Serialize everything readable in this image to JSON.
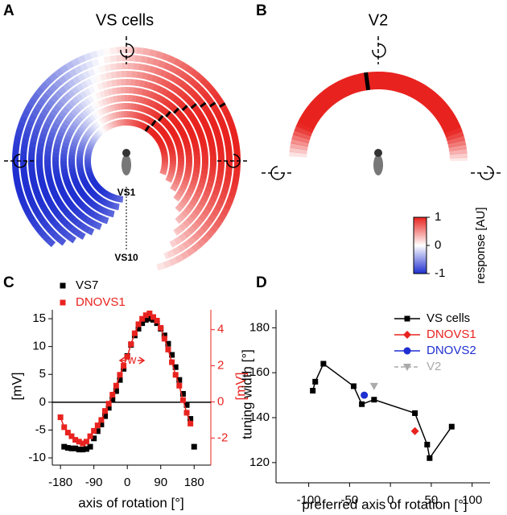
{
  "labels": {
    "a": "A",
    "b": "B",
    "c": "C",
    "d": "D"
  },
  "panel_a": {
    "title": "VS cells",
    "inner_label": "VS1",
    "outer_label": "VS10"
  },
  "panel_b": {
    "title": "V2"
  },
  "colorbar": {
    "label": "response [AU]",
    "ticks": [
      1,
      0,
      -1
    ]
  },
  "chart_data": [
    {
      "type": "scatter",
      "x": [
        -180,
        -170,
        -160,
        -150,
        -140,
        -130,
        -120,
        -110,
        -100,
        -90,
        -80,
        -70,
        -60,
        -50,
        -40,
        -30,
        -20,
        -10,
        0,
        10,
        20,
        30,
        40,
        50,
        60,
        70,
        80,
        90,
        100,
        110,
        120,
        130,
        140,
        150,
        160,
        170,
        180
      ],
      "series": [
        {
          "name": "VS7",
          "color": "#000000",
          "marker": "square",
          "line": "none",
          "values": [
            null,
            -8,
            -8.2,
            -8.3,
            -8.3,
            -8.5,
            -8.5,
            -8.4,
            -8,
            -6.5,
            -5.2,
            -4,
            -2.5,
            -1,
            0.5,
            2,
            4,
            6,
            8.3,
            10.3,
            12,
            13.2,
            14.2,
            14.8,
            15,
            14.8,
            14.2,
            13.2,
            12,
            10.5,
            8.5,
            6.3,
            4,
            1.5,
            -0.5,
            -3,
            -8
          ]
        },
        {
          "name": "DNOVS1",
          "color": "#e8231f",
          "marker": "square",
          "line": "solid",
          "axis": "y2",
          "values": [
            -0.85,
            -1.4,
            -1.7,
            -1.9,
            -2.1,
            -2.2,
            -2.3,
            -2.2,
            -1.9,
            -1.6,
            -1.3,
            -1,
            -0.5,
            -0.1,
            0.4,
            0.9,
            1.5,
            2,
            2.5,
            3.2,
            3.8,
            4.3,
            4.6,
            4.8,
            4.9,
            4.7,
            4.5,
            4.1,
            3.5,
            2.9,
            2.2,
            1.5,
            0.9,
            0.1,
            -0.6,
            -1.2,
            null
          ]
        }
      ],
      "xlabel": "axis of rotation [°]",
      "ylabel": "[mV]",
      "y2label": "[mV]",
      "annotation": "w",
      "xlim": [
        -202,
        225
      ],
      "xticks": [
        -180,
        -90,
        0,
        90,
        180
      ],
      "ylim": [
        -11.3,
        16.6
      ],
      "yticks": [
        -10,
        -5,
        0,
        5,
        10,
        15
      ],
      "y2lim": [
        -3.5,
        5.1
      ],
      "y2ticks": [
        -2,
        0,
        2,
        4
      ],
      "legend": "top-left"
    },
    {
      "type": "scatter",
      "series": [
        {
          "name": "VS cells",
          "color": "#000000",
          "marker": "square",
          "line": "solid",
          "x": [
            -95,
            -92,
            -82,
            -45,
            -35,
            -20,
            30,
            45,
            48,
            75
          ],
          "values": [
            152,
            156,
            164,
            154,
            146,
            148,
            142,
            128,
            122,
            136
          ]
        },
        {
          "name": "DNOVS1",
          "color": "#e8231f",
          "marker": "diamond",
          "line": "solid",
          "x": [
            30
          ],
          "values": [
            134
          ]
        },
        {
          "name": "DNOVS2",
          "color": "#1f2fd0",
          "marker": "circle",
          "line": "solid",
          "x": [
            -32
          ],
          "values": [
            150
          ]
        },
        {
          "name": "V2",
          "color": "#aaaaaa",
          "marker": "triangle",
          "line": "dashed",
          "x": [
            -20
          ],
          "values": [
            154
          ]
        }
      ],
      "xlabel": "preferred axis of rotation [°]",
      "ylabel": "tuning width [°]",
      "xlim": [
        -140,
        122
      ],
      "xticks": [
        -100,
        -50,
        0,
        50,
        100
      ],
      "ylim": [
        111,
        188
      ],
      "yticks": [
        120,
        140,
        160,
        180
      ],
      "legend": "top-right"
    }
  ]
}
